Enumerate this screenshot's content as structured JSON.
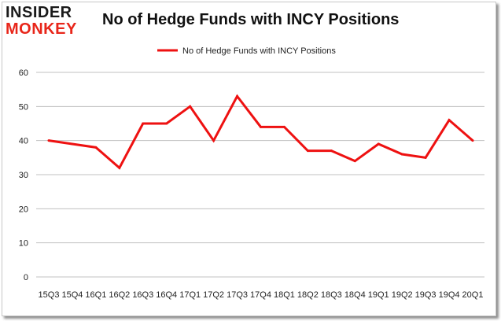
{
  "logo": {
    "top": "INSIDER",
    "bottom": "MONKEY"
  },
  "chart_data": {
    "type": "line",
    "title": "No of Hedge Funds with INCY Positions",
    "xlabel": "",
    "ylabel": "",
    "categories": [
      "15Q3",
      "15Q4",
      "16Q1",
      "16Q2",
      "16Q3",
      "16Q4",
      "17Q1",
      "17Q2",
      "17Q3",
      "17Q4",
      "18Q1",
      "18Q2",
      "18Q3",
      "18Q4",
      "19Q1",
      "19Q2",
      "19Q3",
      "19Q4",
      "20Q1"
    ],
    "series": [
      {
        "name": "No of Hedge Funds with INCY  Positions",
        "values": [
          40,
          39,
          38,
          32,
          45,
          45,
          50,
          40,
          53,
          44,
          44,
          37,
          37,
          34,
          39,
          36,
          35,
          46,
          40
        ]
      }
    ],
    "ylim": [
      0,
      60
    ],
    "yticks": [
      0,
      10,
      20,
      30,
      40,
      50,
      60
    ],
    "grid": true,
    "legend": "top-center",
    "line_color": "#ee1111",
    "grid_color": "#c0c0c0"
  }
}
